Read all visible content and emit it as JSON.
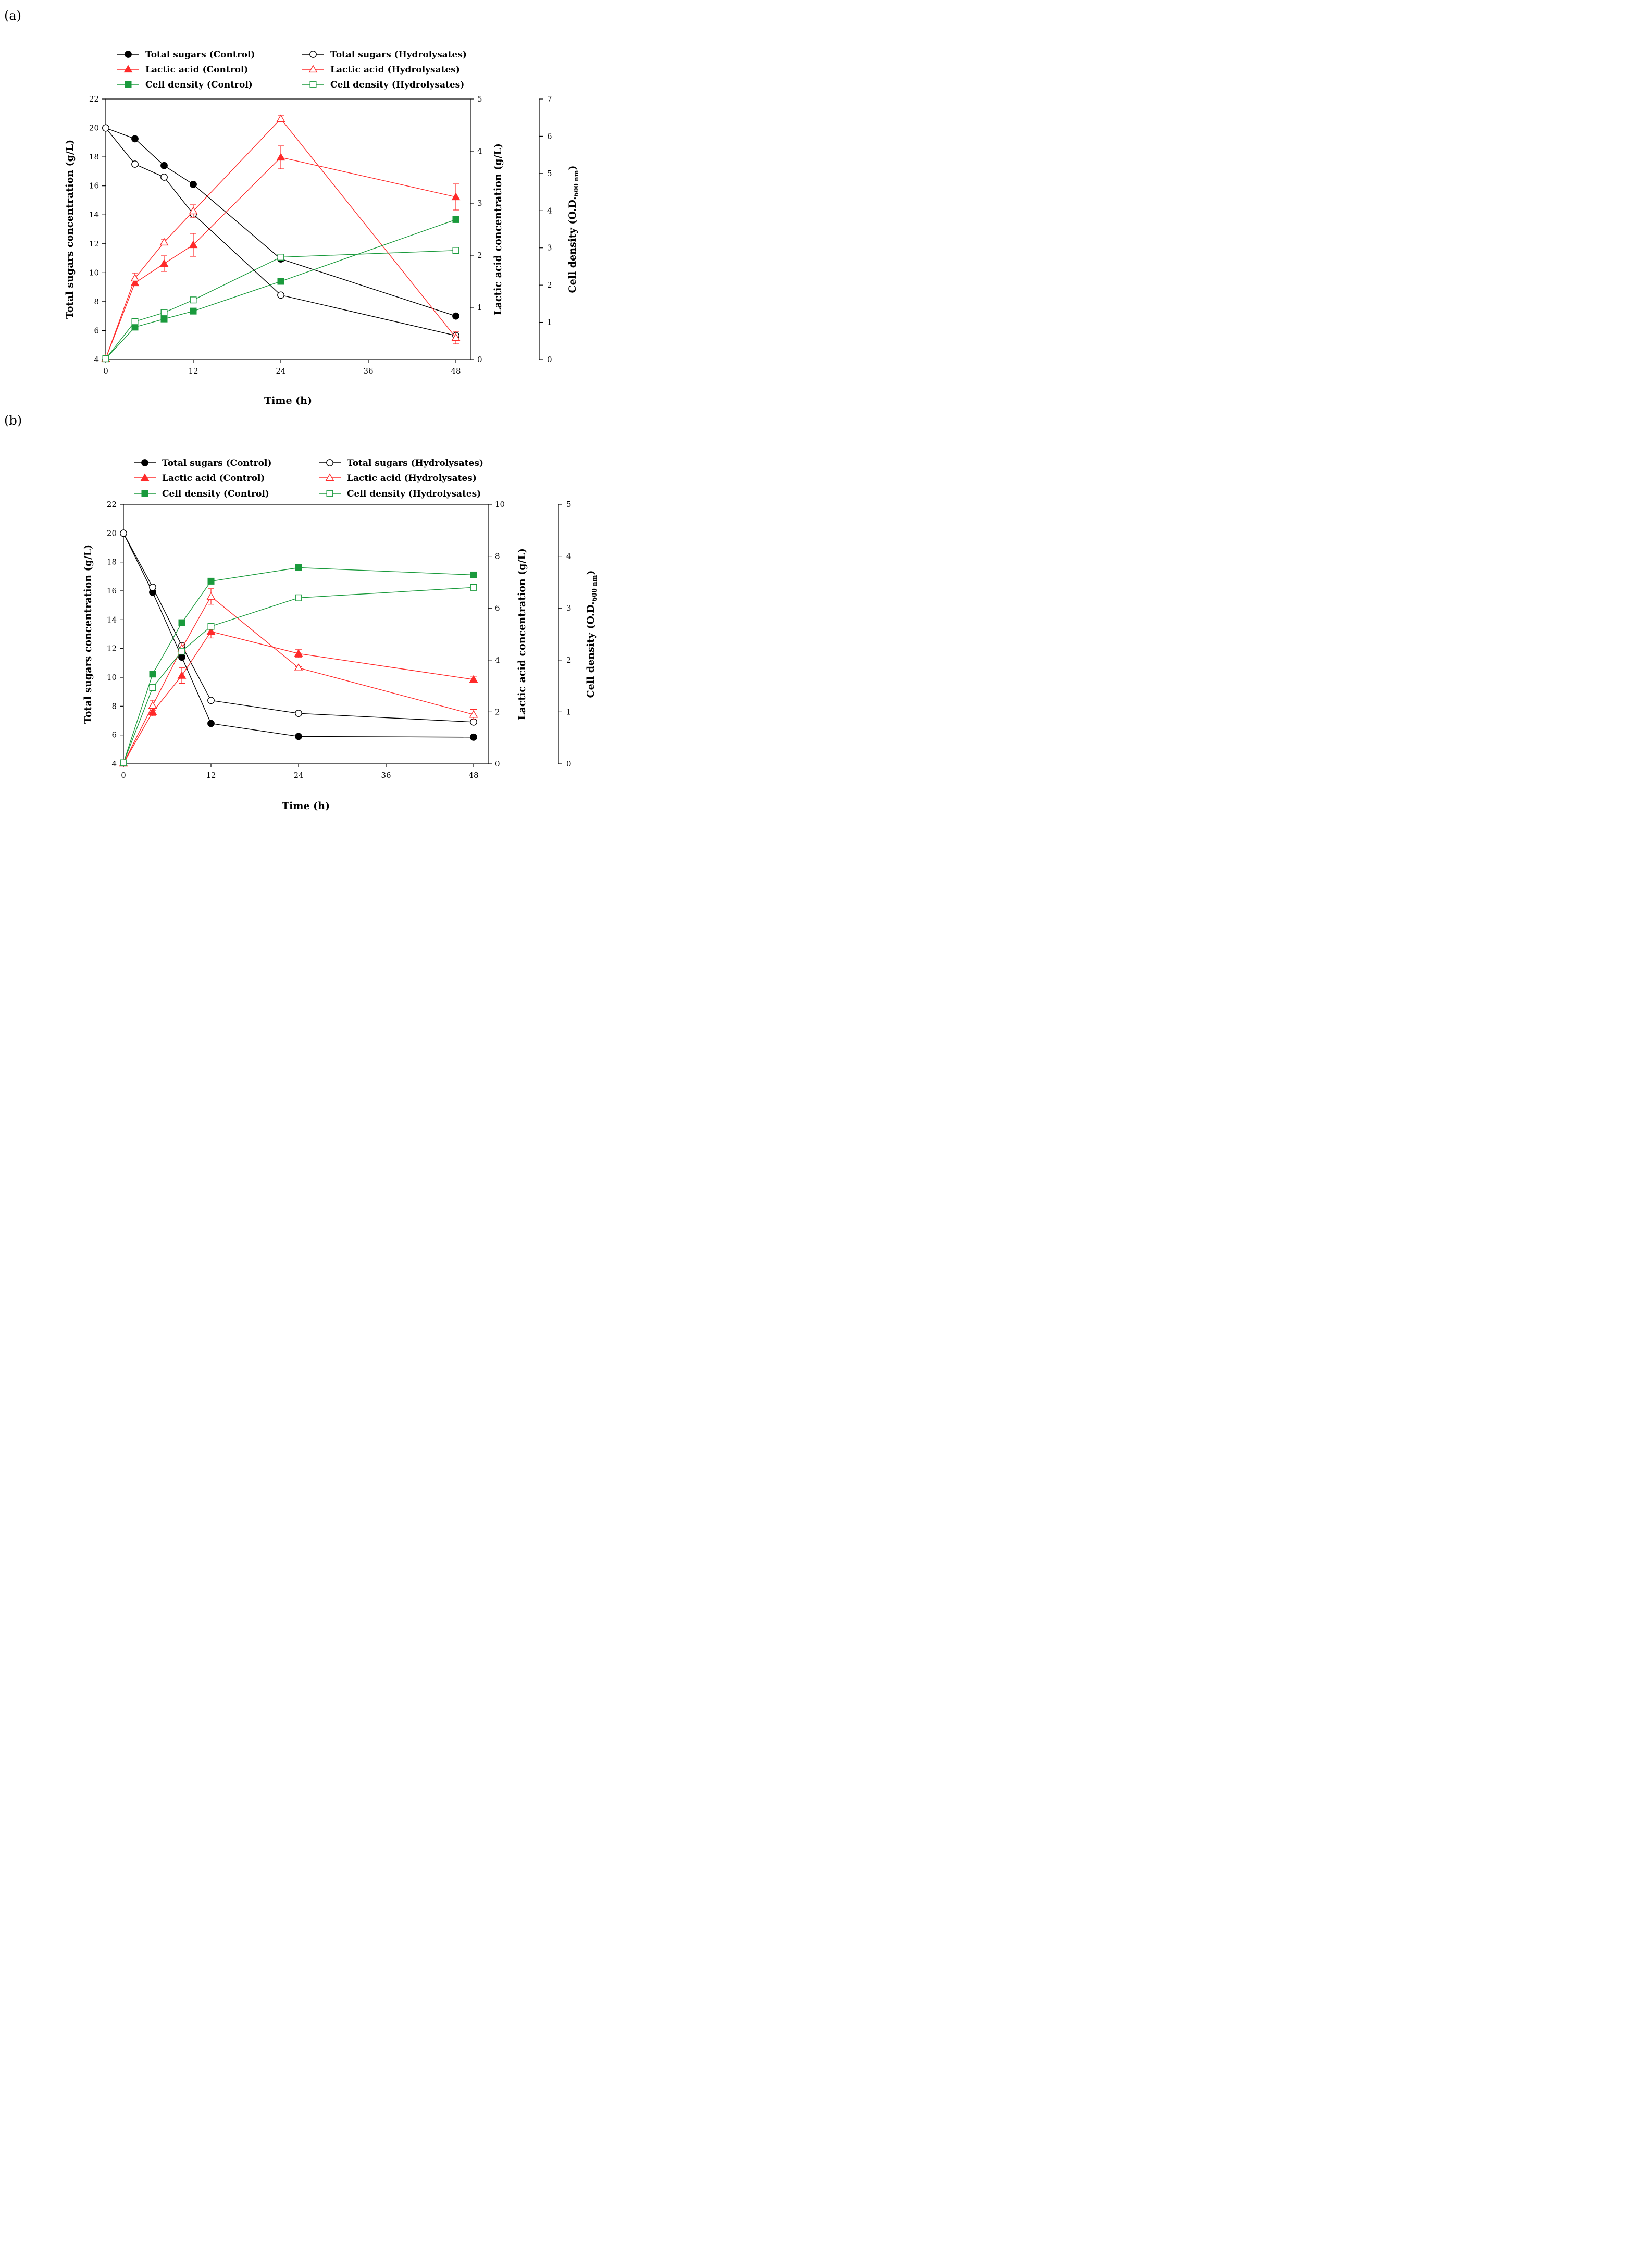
{
  "chart_data": [
    {
      "type": "line",
      "panel_label": "(a)",
      "xlabel": "Time (h)",
      "x_ticks": [
        0,
        12,
        24,
        36,
        48
      ],
      "xlim": [
        0,
        50
      ],
      "axes": [
        {
          "id": "sugar",
          "label": "Total sugars concentration (g/L)",
          "lim": [
            4,
            22
          ],
          "ticks": [
            4,
            6,
            8,
            10,
            12,
            14,
            16,
            18,
            20,
            22
          ]
        },
        {
          "id": "lactic",
          "label": "Lactic acid concentration (g/L)",
          "lim": [
            0,
            5
          ],
          "ticks": [
            0,
            1,
            2,
            3,
            4,
            5
          ]
        },
        {
          "id": "cell",
          "label": "Cell density (O.D.",
          "label_sub": "600 nm",
          "label_end": ")",
          "lim": [
            0,
            7
          ],
          "ticks": [
            0,
            1,
            2,
            3,
            4,
            5,
            6,
            7
          ]
        }
      ],
      "legend": [
        "Total sugars (Control)",
        "Total sugars (Hydrolysates)",
        "Lactic acid (Control)",
        "Lactic acid (Hydrolysates)",
        "Cell density (Control)",
        "Cell density (Hydrolysates)"
      ],
      "series": [
        {
          "name": "Total sugars (Control)",
          "axis": "sugar",
          "color": "#000000",
          "marker": "circle",
          "filled": true,
          "x": [
            0,
            4,
            8,
            12,
            24,
            48
          ],
          "y": [
            20,
            19.25,
            17.4,
            16.1,
            10.95,
            7.0
          ],
          "err": [
            0,
            0.15,
            0.1,
            0.1,
            0.15,
            0.1
          ]
        },
        {
          "name": "Total sugars (Hydrolysates)",
          "axis": "sugar",
          "color": "#000000",
          "marker": "circle",
          "filled": false,
          "x": [
            0,
            4,
            8,
            12,
            24,
            48
          ],
          "y": [
            20,
            17.5,
            16.6,
            14.05,
            8.45,
            5.65
          ],
          "err": [
            0,
            0,
            0,
            0,
            0,
            0
          ]
        },
        {
          "name": "Lactic acid (Control)",
          "axis": "lactic",
          "color": "#ff2a2a",
          "marker": "triangle",
          "filled": true,
          "x": [
            0,
            4,
            8,
            12,
            24,
            48
          ],
          "y": [
            0.02,
            1.47,
            1.84,
            2.2,
            3.88,
            3.12
          ],
          "err": [
            0.04,
            0.05,
            0.15,
            0.22,
            0.22,
            0.25
          ]
        },
        {
          "name": "Lactic acid (Hydrolysates)",
          "axis": "lactic",
          "color": "#ff2a2a",
          "marker": "triangle",
          "filled": false,
          "x": [
            0,
            4,
            8,
            12,
            24,
            48
          ],
          "y": [
            0.02,
            1.56,
            2.25,
            2.85,
            4.62,
            0.42
          ],
          "err": [
            0.04,
            0.1,
            0.05,
            0.12,
            0.06,
            0.12
          ]
        },
        {
          "name": "Cell density (Control)",
          "axis": "cell",
          "color": "#1a9a3c",
          "marker": "square",
          "filled": true,
          "x": [
            0,
            4,
            8,
            12,
            24,
            48
          ],
          "y": [
            0.02,
            0.87,
            1.09,
            1.3,
            2.1,
            3.76
          ],
          "err": [
            0,
            0,
            0,
            0,
            0,
            0
          ]
        },
        {
          "name": "Cell density (Hydrolysates)",
          "axis": "cell",
          "color": "#1a9a3c",
          "marker": "square",
          "filled": false,
          "x": [
            0,
            4,
            8,
            12,
            24,
            48
          ],
          "y": [
            0.02,
            1.02,
            1.26,
            1.6,
            2.75,
            2.93
          ],
          "err": [
            0,
            0,
            0,
            0,
            0,
            0
          ]
        }
      ]
    },
    {
      "type": "line",
      "panel_label": "(b)",
      "xlabel": "Time (h)",
      "x_ticks": [
        0,
        12,
        24,
        36,
        48
      ],
      "xlim": [
        0,
        50
      ],
      "axes": [
        {
          "id": "sugar",
          "label": "Total sugars concentration (g/L)",
          "lim": [
            4,
            22
          ],
          "ticks": [
            4,
            6,
            8,
            10,
            12,
            14,
            16,
            18,
            20,
            22
          ]
        },
        {
          "id": "lactic",
          "label": "Lactic acid concentration (g/L)",
          "lim": [
            0,
            10
          ],
          "ticks": [
            0,
            2,
            4,
            6,
            8,
            10
          ]
        },
        {
          "id": "cell",
          "label": "Cell density (O.D.",
          "label_sub": "600 nm",
          "label_end": ")",
          "lim": [
            0,
            5
          ],
          "ticks": [
            0,
            1,
            2,
            3,
            4,
            5
          ]
        }
      ],
      "legend": [
        "Total sugars (Control)",
        "Total sugars (Hydrolysates)",
        "Lactic acid (Control)",
        "Lactic acid (Hydrolysates)",
        "Cell density (Control)",
        "Cell density (Hydrolysates)"
      ],
      "series": [
        {
          "name": "Total sugars (Control)",
          "axis": "sugar",
          "color": "#000000",
          "marker": "circle",
          "filled": true,
          "x": [
            0,
            4,
            8,
            12,
            24,
            48
          ],
          "y": [
            20,
            15.9,
            11.4,
            6.8,
            5.9,
            5.85
          ],
          "err": [
            0,
            0.1,
            0.1,
            0.1,
            0.05,
            0.05
          ]
        },
        {
          "name": "Total sugars (Hydrolysates)",
          "axis": "sugar",
          "color": "#000000",
          "marker": "circle",
          "filled": false,
          "x": [
            0,
            4,
            8,
            12,
            24,
            48
          ],
          "y": [
            20,
            16.25,
            12.2,
            8.4,
            7.5,
            6.9
          ],
          "err": [
            0,
            0,
            0,
            0,
            0,
            0
          ]
        },
        {
          "name": "Lactic acid (Control)",
          "axis": "lactic",
          "color": "#ff2a2a",
          "marker": "triangle",
          "filled": true,
          "x": [
            0,
            4,
            8,
            12,
            24,
            48
          ],
          "y": [
            0.02,
            2.0,
            3.4,
            5.1,
            4.25,
            3.25
          ],
          "err": [
            0,
            0.15,
            0.3,
            0.25,
            0.15,
            0.1
          ]
        },
        {
          "name": "Lactic acid (Hydrolysates)",
          "axis": "lactic",
          "color": "#ff2a2a",
          "marker": "triangle",
          "filled": false,
          "x": [
            0,
            4,
            8,
            12,
            24,
            48
          ],
          "y": [
            0.02,
            2.25,
            4.45,
            6.45,
            3.7,
            1.9
          ],
          "err": [
            0,
            0.2,
            0.2,
            0.3,
            0.05,
            0.2
          ]
        },
        {
          "name": "Cell density (Control)",
          "axis": "cell",
          "color": "#1a9a3c",
          "marker": "square",
          "filled": true,
          "x": [
            0,
            4,
            8,
            12,
            24,
            48
          ],
          "y": [
            0.02,
            1.73,
            2.72,
            3.52,
            3.78,
            3.64
          ],
          "err": [
            0,
            0,
            0,
            0,
            0,
            0
          ]
        },
        {
          "name": "Cell density (Hydrolysates)",
          "axis": "cell",
          "color": "#1a9a3c",
          "marker": "square",
          "filled": false,
          "x": [
            0,
            4,
            8,
            12,
            24,
            48
          ],
          "y": [
            0.02,
            1.47,
            2.17,
            2.65,
            3.2,
            3.4
          ],
          "err": [
            0,
            0,
            0,
            0,
            0,
            0
          ]
        }
      ]
    }
  ]
}
